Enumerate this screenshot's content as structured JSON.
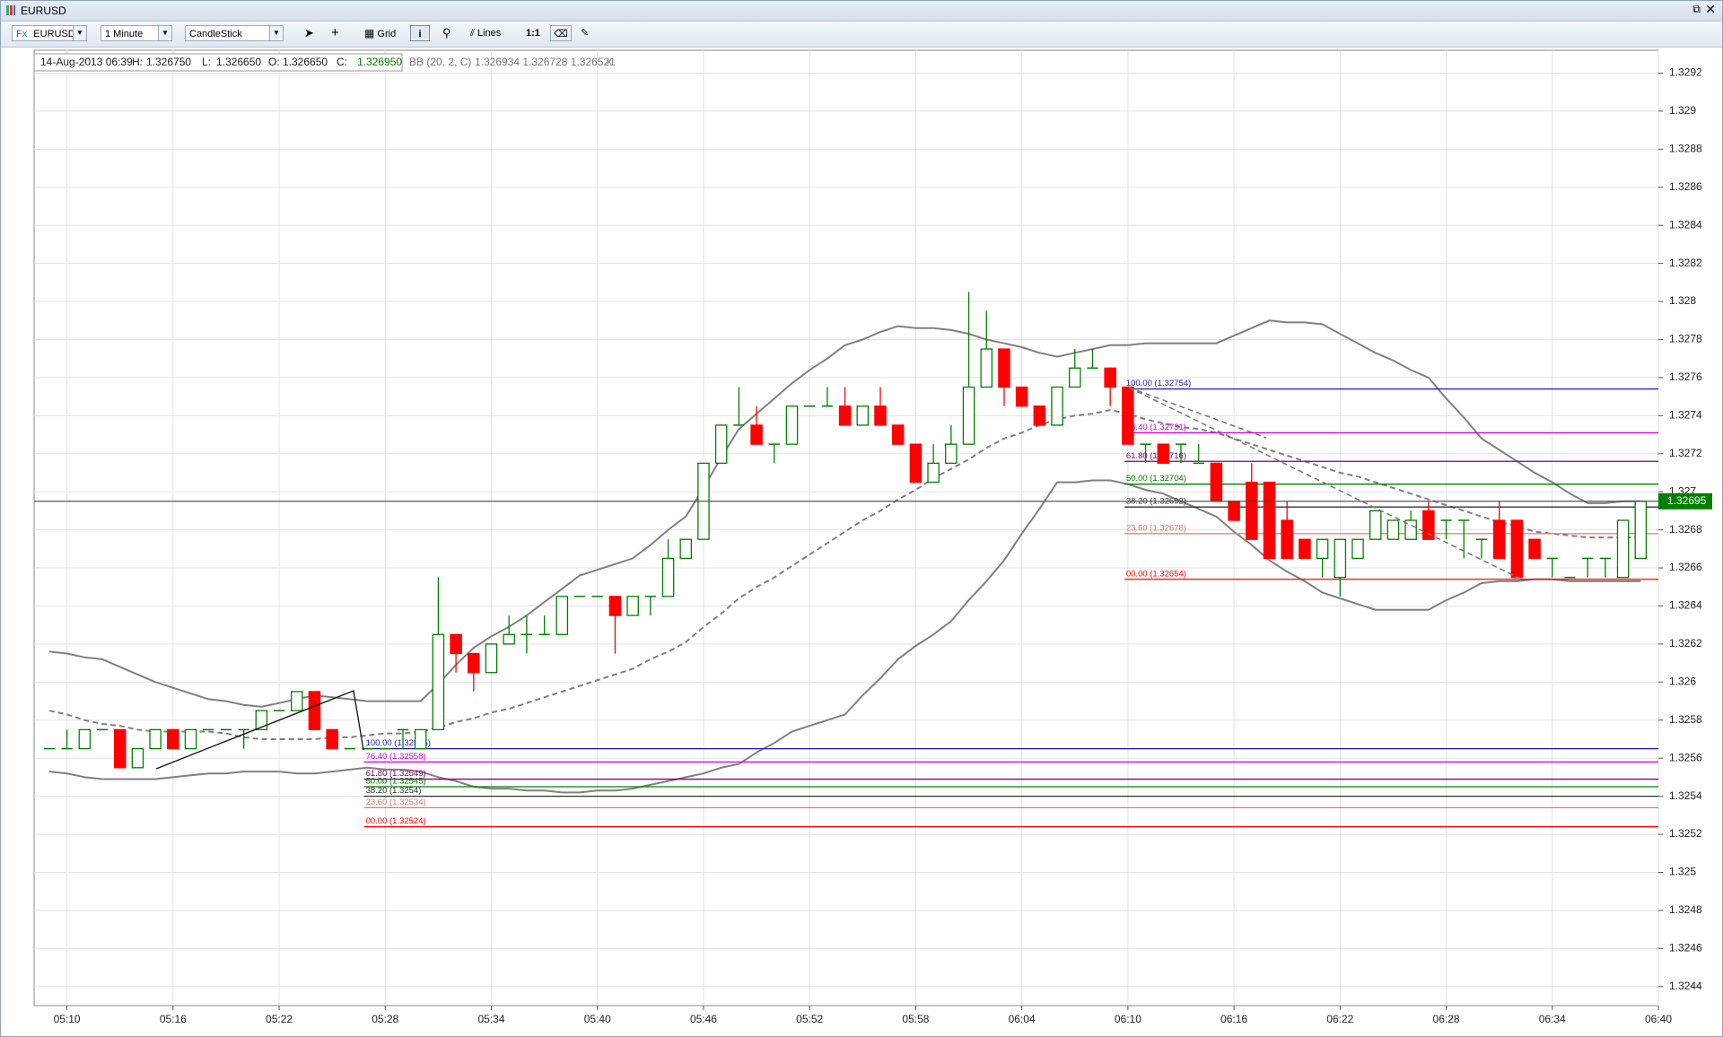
{
  "window": {
    "title": "EURUSD"
  },
  "toolbar": {
    "symbol_prefix": "Fx",
    "symbol": "EURUSD",
    "interval": "1 Minute",
    "chart_style": "CandleStick",
    "grid_button": "Grid",
    "lines_button": "Lines",
    "ratio_button": "1:1"
  },
  "info_bar": {
    "date": "14-Aug-2013 06:39",
    "h_label": "H:",
    "h": "1.326750",
    "l_label": "L:",
    "l": "1.326650",
    "o_label": "O:",
    "o": "1.326650",
    "c_label": "C:",
    "c": "1.326950",
    "indicator": "BB (20, 2, C)",
    "indicator_values": "1.326934 1.326728 1.326521",
    "close": "×"
  },
  "chart_data": {
    "type": "candlestick",
    "categories": [
      null,
      "05:10",
      null,
      null,
      null,
      null,
      null,
      "05:16",
      null,
      null,
      null,
      null,
      null,
      "05:22",
      null,
      null,
      null,
      null,
      null,
      "05:28",
      null,
      null,
      null,
      null,
      null,
      "05:34",
      null,
      null,
      null,
      null,
      null,
      "05:40",
      null,
      null,
      null,
      null,
      null,
      "05:46",
      null,
      null,
      null,
      null,
      null,
      "05:52",
      null,
      null,
      null,
      null,
      null,
      "05:58",
      null,
      null,
      null,
      null,
      null,
      "06:04",
      null,
      null,
      null,
      null,
      null,
      "06:10",
      null,
      null,
      null,
      null,
      null,
      "06:16",
      null,
      null,
      null,
      null,
      null,
      "06:22",
      null,
      null,
      null,
      null,
      null,
      "06:28",
      null,
      null,
      null,
      null,
      null,
      "06:34",
      null,
      null,
      null,
      null,
      null,
      "06:40"
    ],
    "ohlc": [
      [
        1.32565,
        1.32565,
        1.32565,
        1.32565
      ],
      [
        1.32565,
        1.32575,
        1.32565,
        1.32565
      ],
      [
        1.32565,
        1.32575,
        1.32565,
        1.32575
      ],
      [
        1.32575,
        1.32575,
        1.32575,
        1.32575
      ],
      [
        1.32575,
        1.32575,
        1.32555,
        1.32555
      ],
      [
        1.32555,
        1.32565,
        1.32555,
        1.32565
      ],
      [
        1.32565,
        1.32575,
        1.32565,
        1.32575
      ],
      [
        1.32575,
        1.32575,
        1.32565,
        1.32565
      ],
      [
        1.32565,
        1.32575,
        1.32565,
        1.32575
      ],
      [
        1.32575,
        1.32575,
        1.32575,
        1.32575
      ],
      [
        1.32575,
        1.32575,
        1.32575,
        1.32575
      ],
      [
        1.32575,
        1.32575,
        1.32565,
        1.32575
      ],
      [
        1.32575,
        1.32585,
        1.32575,
        1.32585
      ],
      [
        1.32585,
        1.32585,
        1.32585,
        1.32585
      ],
      [
        1.32585,
        1.32595,
        1.32585,
        1.32595
      ],
      [
        1.32595,
        1.32595,
        1.32575,
        1.32575
      ],
      [
        1.32575,
        1.32575,
        1.32565,
        1.32565
      ],
      [
        1.32565,
        1.32565,
        1.32565,
        1.32565
      ],
      [
        1.32565,
        1.32565,
        1.32565,
        1.32565
      ],
      [
        1.32565,
        1.32565,
        1.32565,
        1.32565
      ],
      [
        1.32575,
        1.32575,
        1.32565,
        1.32575
      ],
      [
        1.32565,
        1.32575,
        1.32565,
        1.32575
      ],
      [
        1.32575,
        1.32655,
        1.32575,
        1.32625
      ],
      [
        1.32625,
        1.32625,
        1.32605,
        1.32615
      ],
      [
        1.32615,
        1.32615,
        1.32595,
        1.32605
      ],
      [
        1.32605,
        1.3262,
        1.32605,
        1.3262
      ],
      [
        1.3262,
        1.32635,
        1.3262,
        1.32625
      ],
      [
        1.32625,
        1.32635,
        1.32615,
        1.32625
      ],
      [
        1.32625,
        1.32635,
        1.32625,
        1.32625
      ],
      [
        1.32625,
        1.32645,
        1.32625,
        1.32645
      ],
      [
        1.32645,
        1.32645,
        1.32645,
        1.32645
      ],
      [
        1.32645,
        1.32645,
        1.32645,
        1.32645
      ],
      [
        1.32645,
        1.32645,
        1.32615,
        1.32635
      ],
      [
        1.32635,
        1.32645,
        1.32635,
        1.32645
      ],
      [
        1.32645,
        1.32645,
        1.32635,
        1.32645
      ],
      [
        1.32645,
        1.32675,
        1.32645,
        1.32665
      ],
      [
        1.32665,
        1.32675,
        1.32665,
        1.32675
      ],
      [
        1.32675,
        1.32715,
        1.32675,
        1.32715
      ],
      [
        1.32715,
        1.32735,
        1.32715,
        1.32735
      ],
      [
        1.32735,
        1.32755,
        1.32735,
        1.32735
      ],
      [
        1.32735,
        1.32745,
        1.32725,
        1.32725
      ],
      [
        1.32725,
        1.32725,
        1.32715,
        1.32725
      ],
      [
        1.32725,
        1.32745,
        1.32725,
        1.32745
      ],
      [
        1.32745,
        1.32745,
        1.32745,
        1.32745
      ],
      [
        1.32745,
        1.32755,
        1.32745,
        1.32745
      ],
      [
        1.32745,
        1.32755,
        1.32735,
        1.32735
      ],
      [
        1.32735,
        1.32745,
        1.32735,
        1.32745
      ],
      [
        1.32745,
        1.32755,
        1.32735,
        1.32735
      ],
      [
        1.32735,
        1.32735,
        1.32725,
        1.32725
      ],
      [
        1.32725,
        1.32725,
        1.32705,
        1.32705
      ],
      [
        1.32705,
        1.32725,
        1.32705,
        1.32715
      ],
      [
        1.32715,
        1.32735,
        1.32715,
        1.32725
      ],
      [
        1.32725,
        1.32805,
        1.32725,
        1.32755
      ],
      [
        1.32755,
        1.32795,
        1.32755,
        1.32775
      ],
      [
        1.32775,
        1.32775,
        1.32745,
        1.32755
      ],
      [
        1.32755,
        1.32755,
        1.32745,
        1.32745
      ],
      [
        1.32745,
        1.32745,
        1.32735,
        1.32735
      ],
      [
        1.32735,
        1.32755,
        1.32735,
        1.32755
      ],
      [
        1.32755,
        1.32775,
        1.32755,
        1.32765
      ],
      [
        1.32765,
        1.32775,
        1.32765,
        1.32765
      ],
      [
        1.32765,
        1.32765,
        1.32745,
        1.32755
      ],
      [
        1.32755,
        1.32755,
        1.32725,
        1.32725
      ],
      [
        1.32725,
        1.32725,
        1.32715,
        1.32725
      ],
      [
        1.32725,
        1.32725,
        1.32715,
        1.32715
      ],
      [
        1.32725,
        1.32725,
        1.32715,
        1.32725
      ],
      [
        1.32715,
        1.32725,
        1.32715,
        1.32715
      ],
      [
        1.32715,
        1.32715,
        1.32695,
        1.32695
      ],
      [
        1.32695,
        1.32695,
        1.32685,
        1.32685
      ],
      [
        1.32705,
        1.32715,
        1.32675,
        1.32675
      ],
      [
        1.32705,
        1.32705,
        1.32665,
        1.32665
      ],
      [
        1.32685,
        1.32695,
        1.32665,
        1.32665
      ],
      [
        1.32675,
        1.32675,
        1.32665,
        1.32665
      ],
      [
        1.32665,
        1.32675,
        1.32655,
        1.32675
      ],
      [
        1.32655,
        1.32675,
        1.32645,
        1.32675
      ],
      [
        1.32665,
        1.32675,
        1.32665,
        1.32675
      ],
      [
        1.32675,
        1.3269,
        1.32675,
        1.3269
      ],
      [
        1.32675,
        1.32685,
        1.32675,
        1.32685
      ],
      [
        1.32675,
        1.3269,
        1.32675,
        1.32685
      ],
      [
        1.3269,
        1.32695,
        1.32675,
        1.32675
      ],
      [
        1.32685,
        1.32685,
        1.32675,
        1.32685
      ],
      [
        1.32685,
        1.32685,
        1.32665,
        1.32685
      ],
      [
        1.32675,
        1.32675,
        1.32665,
        1.32675
      ],
      [
        1.32685,
        1.32695,
        1.32665,
        1.32665
      ],
      [
        1.32685,
        1.32685,
        1.32655,
        1.32655
      ],
      [
        1.32675,
        1.32675,
        1.32665,
        1.32665
      ],
      [
        1.32665,
        1.32665,
        1.32655,
        1.32665
      ],
      [
        1.32655,
        1.32655,
        1.32655,
        1.32655
      ],
      [
        1.32665,
        1.32665,
        1.32655,
        1.32665
      ],
      [
        1.32665,
        1.32665,
        1.32655,
        1.32665
      ],
      [
        1.32655,
        1.32685,
        1.32655,
        1.32685
      ],
      [
        1.32665,
        1.32695,
        1.32665,
        1.32695
      ],
      null
    ],
    "up_color": "#008000",
    "down_color": "#ff0000",
    "bands": [
      {
        "style": "solid",
        "color": "#808080",
        "values": [
          1.32616,
          1.32615,
          1.32613,
          1.32612,
          1.32608,
          1.32604,
          1.326,
          1.32597,
          1.32594,
          1.32591,
          1.3259,
          1.32588,
          1.32587,
          1.32589,
          1.32591,
          1.32593,
          1.32592,
          1.32591,
          1.3259,
          1.3259,
          1.3259,
          1.3259,
          1.32599,
          1.32609,
          1.32618,
          1.32624,
          1.32629,
          1.32635,
          1.32642,
          1.32649,
          1.32656,
          1.32659,
          1.32662,
          1.32665,
          1.32672,
          1.3268,
          1.32687,
          1.32702,
          1.32718,
          1.32733,
          1.32741,
          1.32749,
          1.32757,
          1.32764,
          1.3277,
          1.32777,
          1.3278,
          1.32784,
          1.32787,
          1.32786,
          1.32786,
          1.32785,
          1.32783,
          1.3278,
          1.32778,
          1.32776,
          1.32773,
          1.32771,
          1.32773,
          1.32775,
          1.32777,
          1.32777,
          1.32778,
          1.32778,
          1.32778,
          1.32778,
          1.32778,
          1.32782,
          1.32786,
          1.3279,
          1.32789,
          1.32789,
          1.32788,
          1.32783,
          1.32778,
          1.32773,
          1.32769,
          1.32764,
          1.3276,
          1.32749,
          1.32739,
          1.32728,
          1.32722,
          1.32716,
          1.3271,
          1.32705,
          1.32699,
          1.32694,
          1.32694,
          1.32695,
          1.32695,
          null
        ]
      },
      {
        "style": "dashed",
        "color": "#808080",
        "values": [
          1.32585,
          1.32583,
          1.3258,
          1.32578,
          1.32577,
          1.32575,
          1.32574,
          1.32574,
          1.32574,
          1.32574,
          1.32573,
          1.32571,
          1.3257,
          1.3257,
          1.3257,
          1.3257,
          1.32571,
          1.32571,
          1.32572,
          1.32573,
          1.32573,
          1.32574,
          1.32576,
          1.32579,
          1.32581,
          1.32584,
          1.32586,
          1.32589,
          1.32592,
          1.32595,
          1.32598,
          1.32601,
          1.32604,
          1.32607,
          1.32612,
          1.32616,
          1.32621,
          1.32629,
          1.32636,
          1.32644,
          1.3265,
          1.32655,
          1.32661,
          1.32667,
          1.32673,
          1.32679,
          1.32685,
          1.3269,
          1.32696,
          1.32701,
          1.32707,
          1.32712,
          1.32717,
          1.32723,
          1.32728,
          1.32731,
          1.32735,
          1.32738,
          1.3274,
          1.32741,
          1.32743,
          1.32741,
          1.32738,
          1.32736,
          1.32734,
          1.32733,
          1.32731,
          1.32728,
          1.32725,
          1.32722,
          1.32719,
          1.32716,
          1.32713,
          1.3271,
          1.32708,
          1.32705,
          1.32702,
          1.32699,
          1.32696,
          1.32693,
          1.3269,
          1.32687,
          1.32684,
          1.32682,
          1.32679,
          1.32678,
          1.32677,
          1.32676,
          1.32676,
          1.32676,
          1.32676,
          null
        ]
      },
      {
        "style": "solid",
        "color": "#808080",
        "values": [
          1.32553,
          1.32552,
          1.3255,
          1.32549,
          1.32549,
          1.32549,
          1.32549,
          1.3255,
          1.32551,
          1.32552,
          1.32552,
          1.32553,
          1.32553,
          1.32553,
          1.32552,
          1.32552,
          1.32553,
          1.32554,
          1.32555,
          1.32554,
          1.32554,
          1.32553,
          1.3255,
          1.32548,
          1.32545,
          1.32544,
          1.32544,
          1.32543,
          1.32543,
          1.32542,
          1.32542,
          1.32543,
          1.32543,
          1.32544,
          1.32546,
          1.32548,
          1.3255,
          1.32552,
          1.32555,
          1.32557,
          1.32563,
          1.32568,
          1.32574,
          1.32577,
          1.3258,
          1.32583,
          1.32593,
          1.32602,
          1.32612,
          1.32619,
          1.32625,
          1.32632,
          1.32643,
          1.32653,
          1.32664,
          1.32678,
          1.32691,
          1.32705,
          1.32705,
          1.32706,
          1.32706,
          1.32704,
          1.32701,
          1.32699,
          1.32695,
          1.32691,
          1.32687,
          1.32679,
          1.32672,
          1.32664,
          1.32658,
          1.32653,
          1.32647,
          1.32644,
          1.32641,
          1.32638,
          1.32638,
          1.32638,
          1.32638,
          1.32643,
          1.32647,
          1.32652,
          1.32653,
          1.32653,
          1.32654,
          1.32654,
          1.32653,
          1.32653,
          1.32653,
          1.32653,
          1.32653,
          null
        ]
      }
    ],
    "fibonacci": [
      {
        "levels": [
          {
            "value": 1.32565,
            "label": "100.00 (1.32565)",
            "color": "#1a1ab8"
          },
          {
            "value": 1.32558,
            "label": "76.40 (1.32558)",
            "color": "#e000e0"
          },
          {
            "value": 1.32549,
            "label": "61.80 (1.32549)",
            "color": "#800080"
          },
          {
            "value": 1.32545,
            "label": "50.00 (1.32545)",
            "color": "#008000"
          },
          {
            "value": 1.3254,
            "label": "38.20 (1.3254)",
            "color": "#303030"
          },
          {
            "value": 1.32534,
            "label": "23.60 (1.32534)",
            "color": "#e07a6a"
          },
          {
            "value": 1.32524,
            "label": "00.00 (1.32524)",
            "color": "#ff0000"
          }
        ]
      },
      {
        "levels": [
          {
            "value": 1.32754,
            "label": "100.00 (1.32754)",
            "color": "#1a1ab8"
          },
          {
            "value": 1.32731,
            "label": "76.40 (1.32731)",
            "color": "#e000e0"
          },
          {
            "value": 1.32716,
            "label": "61.80 (1.32716)",
            "color": "#800080"
          },
          {
            "value": 1.32704,
            "label": "50.00 (1.32704)",
            "color": "#008000"
          },
          {
            "value": 1.32692,
            "label": "38.20 (1.32692)",
            "color": "#303030"
          },
          {
            "value": 1.32678,
            "label": "23.60 (1.32678)",
            "color": "#e07a6a"
          },
          {
            "value": 1.32654,
            "label": "00.00 (1.32654)",
            "color": "#ff0000"
          }
        ]
      }
    ],
    "last_price": 1.32695,
    "last_price_color": "#008000",
    "ylim": [
      1.3243,
      1.32932
    ],
    "yticks": [
      1.3244,
      1.3246,
      1.3248,
      1.325,
      1.3252,
      1.3254,
      1.3256,
      1.3258,
      1.326,
      1.3262,
      1.3264,
      1.3266,
      1.3268,
      1.327,
      1.3272,
      1.3274,
      1.3276,
      1.3278,
      1.328,
      1.3282,
      1.3284,
      1.3286,
      1.3288,
      1.329,
      1.3292
    ],
    "grid": true
  }
}
